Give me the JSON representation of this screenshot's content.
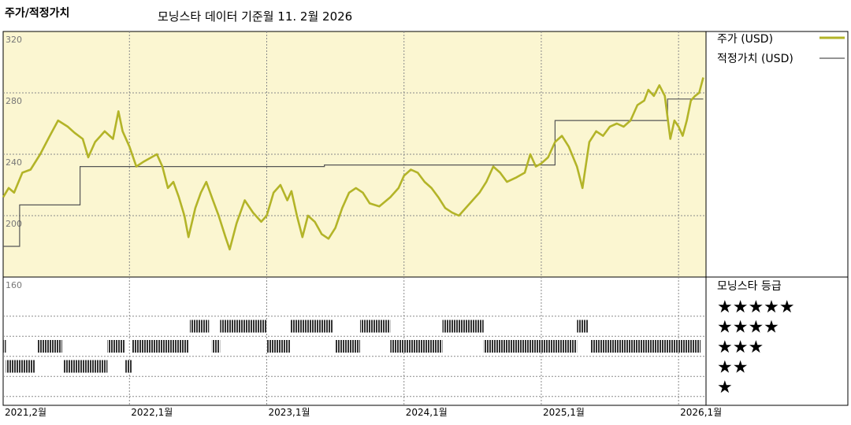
{
  "header": {
    "chart_title": "주가/적정가치",
    "source_note": "모닝스타 데이터 기준월 11. 2월 2026"
  },
  "colors": {
    "panel_bg": "#fbf6d1",
    "price_line": "#b3b428",
    "fair_value_line": "#555555",
    "grid": "#8a8a8a",
    "rating_bar": "#333333"
  },
  "legend": {
    "price_label": "주가 (USD)",
    "fair_value_label": "적정가치 (USD)",
    "rating_title": "모닝스타 등급",
    "ratings": [
      "★★★★★",
      "★★★★",
      "★★★",
      "★★",
      "★"
    ]
  },
  "chart_data": {
    "type": "line",
    "y_ticks": [
      "320",
      "280",
      "240",
      "200",
      "160"
    ],
    "ylim": [
      160,
      320
    ],
    "x_ticks": [
      "2021,2월",
      "2022,1월",
      "2023,1월",
      "2024,1월",
      "2025,1월",
      "2026,1월"
    ],
    "x_tick_t": [
      2021.08,
      2022.0,
      2023.0,
      2024.0,
      2025.0,
      2026.0
    ],
    "xlim": [
      2021.08,
      2026.2
    ],
    "price": {
      "name": "주가 (USD)",
      "points": [
        [
          2021.08,
          212
        ],
        [
          2021.12,
          218
        ],
        [
          2021.16,
          215
        ],
        [
          2021.22,
          228
        ],
        [
          2021.28,
          230
        ],
        [
          2021.35,
          240
        ],
        [
          2021.42,
          252
        ],
        [
          2021.48,
          262
        ],
        [
          2021.55,
          258
        ],
        [
          2021.6,
          254
        ],
        [
          2021.66,
          250
        ],
        [
          2021.7,
          238
        ],
        [
          2021.75,
          248
        ],
        [
          2021.82,
          255
        ],
        [
          2021.88,
          250
        ],
        [
          2021.92,
          268
        ],
        [
          2021.95,
          255
        ],
        [
          2022.0,
          245
        ],
        [
          2022.05,
          232
        ],
        [
          2022.1,
          235
        ],
        [
          2022.16,
          238
        ],
        [
          2022.2,
          240
        ],
        [
          2022.24,
          232
        ],
        [
          2022.28,
          218
        ],
        [
          2022.32,
          222
        ],
        [
          2022.36,
          212
        ],
        [
          2022.4,
          200
        ],
        [
          2022.43,
          186
        ],
        [
          2022.48,
          205
        ],
        [
          2022.52,
          215
        ],
        [
          2022.56,
          222
        ],
        [
          2022.6,
          212
        ],
        [
          2022.65,
          200
        ],
        [
          2022.7,
          186
        ],
        [
          2022.73,
          178
        ],
        [
          2022.78,
          195
        ],
        [
          2022.84,
          210
        ],
        [
          2022.9,
          202
        ],
        [
          2022.96,
          196
        ],
        [
          2023.0,
          200
        ],
        [
          2023.05,
          215
        ],
        [
          2023.1,
          220
        ],
        [
          2023.15,
          210
        ],
        [
          2023.18,
          216
        ],
        [
          2023.22,
          200
        ],
        [
          2023.26,
          186
        ],
        [
          2023.3,
          200
        ],
        [
          2023.35,
          196
        ],
        [
          2023.4,
          188
        ],
        [
          2023.45,
          185
        ],
        [
          2023.5,
          192
        ],
        [
          2023.55,
          205
        ],
        [
          2023.6,
          215
        ],
        [
          2023.65,
          218
        ],
        [
          2023.7,
          215
        ],
        [
          2023.75,
          208
        ],
        [
          2023.82,
          206
        ],
        [
          2023.9,
          212
        ],
        [
          2023.96,
          218
        ],
        [
          2024.0,
          226
        ],
        [
          2024.05,
          230
        ],
        [
          2024.1,
          228
        ],
        [
          2024.15,
          222
        ],
        [
          2024.2,
          218
        ],
        [
          2024.25,
          212
        ],
        [
          2024.3,
          205
        ],
        [
          2024.35,
          202
        ],
        [
          2024.4,
          200
        ],
        [
          2024.45,
          205
        ],
        [
          2024.5,
          210
        ],
        [
          2024.55,
          215
        ],
        [
          2024.6,
          222
        ],
        [
          2024.65,
          232
        ],
        [
          2024.7,
          228
        ],
        [
          2024.75,
          222
        ],
        [
          2024.82,
          225
        ],
        [
          2024.88,
          228
        ],
        [
          2024.92,
          240
        ],
        [
          2024.96,
          232
        ],
        [
          2025.0,
          234
        ],
        [
          2025.05,
          238
        ],
        [
          2025.1,
          248
        ],
        [
          2025.15,
          252
        ],
        [
          2025.2,
          245
        ],
        [
          2025.26,
          232
        ],
        [
          2025.3,
          218
        ],
        [
          2025.35,
          248
        ],
        [
          2025.4,
          255
        ],
        [
          2025.45,
          252
        ],
        [
          2025.5,
          258
        ],
        [
          2025.55,
          260
        ],
        [
          2025.6,
          258
        ],
        [
          2025.65,
          262
        ],
        [
          2025.7,
          272
        ],
        [
          2025.75,
          275
        ],
        [
          2025.78,
          282
        ],
        [
          2025.82,
          278
        ],
        [
          2025.86,
          285
        ],
        [
          2025.9,
          278
        ],
        [
          2025.94,
          250
        ],
        [
          2025.97,
          262
        ],
        [
          2026.0,
          258
        ],
        [
          2026.03,
          252
        ],
        [
          2026.06,
          262
        ],
        [
          2026.09,
          275
        ],
        [
          2026.12,
          278
        ],
        [
          2026.15,
          280
        ],
        [
          2026.18,
          290
        ]
      ]
    },
    "fair_value": {
      "name": "적정가치 (USD)",
      "steps": [
        [
          2021.08,
          180
        ],
        [
          2021.2,
          180
        ],
        [
          2021.2,
          207
        ],
        [
          2021.64,
          207
        ],
        [
          2021.64,
          232
        ],
        [
          2023.42,
          232
        ],
        [
          2023.42,
          233
        ],
        [
          2025.1,
          233
        ],
        [
          2025.1,
          262
        ],
        [
          2025.92,
          262
        ],
        [
          2025.92,
          276
        ],
        [
          2026.18,
          276
        ]
      ]
    },
    "rating": {
      "levels": [
        5,
        4,
        3,
        2,
        1
      ],
      "segments": [
        {
          "level": 3,
          "from": 2021.08,
          "to": 2021.1
        },
        {
          "level": 2,
          "from": 2021.1,
          "to": 2021.31
        },
        {
          "level": 3,
          "from": 2021.33,
          "to": 2021.51
        },
        {
          "level": 2,
          "from": 2021.52,
          "to": 2021.84
        },
        {
          "level": 3,
          "from": 2021.84,
          "to": 2021.97
        },
        {
          "level": 2,
          "from": 2021.97,
          "to": 2022.02
        },
        {
          "level": 3,
          "from": 2022.02,
          "to": 2022.43
        },
        {
          "level": 4,
          "from": 2022.44,
          "to": 2022.58
        },
        {
          "level": 3,
          "from": 2022.6,
          "to": 2022.66
        },
        {
          "level": 4,
          "from": 2022.66,
          "to": 2023.0
        },
        {
          "level": 3,
          "from": 2023.0,
          "to": 2023.17
        },
        {
          "level": 4,
          "from": 2023.17,
          "to": 2023.48
        },
        {
          "level": 3,
          "from": 2023.5,
          "to": 2023.68
        },
        {
          "level": 4,
          "from": 2023.68,
          "to": 2023.9
        },
        {
          "level": 3,
          "from": 2023.9,
          "to": 2024.28
        },
        {
          "level": 4,
          "from": 2024.28,
          "to": 2024.58
        },
        {
          "level": 3,
          "from": 2024.58,
          "to": 2025.26
        },
        {
          "level": 4,
          "from": 2025.26,
          "to": 2025.34
        },
        {
          "level": 3,
          "from": 2025.36,
          "to": 2026.16
        }
      ]
    }
  }
}
